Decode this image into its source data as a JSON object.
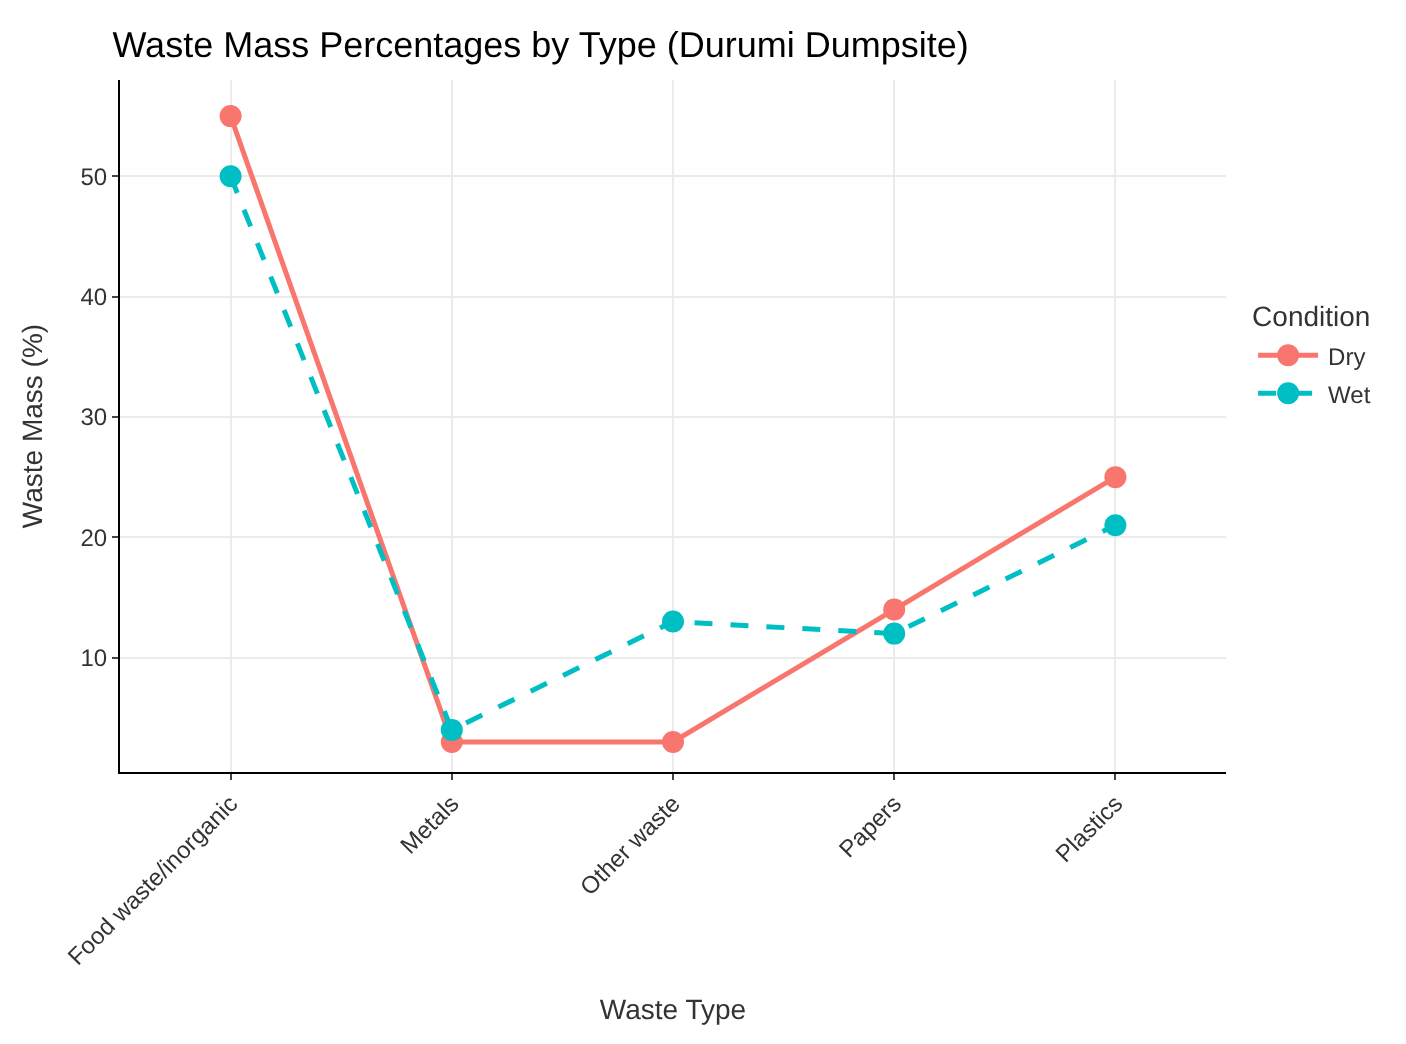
{
  "chart_data": {
    "type": "line",
    "title": "Waste Mass Percentages by Type (Durumi Dumpsite)",
    "xlabel": "Waste Type",
    "ylabel": "Waste Mass (%)",
    "legend_title": "Condition",
    "categories": [
      "Food waste/inorganic",
      "Metals",
      "Other waste",
      "Papers",
      "Plastics"
    ],
    "series": [
      {
        "name": "Dry",
        "color": "#f8766d",
        "values": [
          55,
          3,
          3,
          14,
          25
        ],
        "line_style": "solid"
      },
      {
        "name": "Wet",
        "color": "#00bfc4",
        "values": [
          50,
          4,
          13,
          12,
          21
        ],
        "line_style": "dashed"
      }
    ],
    "ylim": [
      0.5,
      58
    ],
    "yticks": [
      10,
      20,
      30,
      40,
      50
    ],
    "grid": true,
    "legend": "right",
    "marker": "circle"
  }
}
